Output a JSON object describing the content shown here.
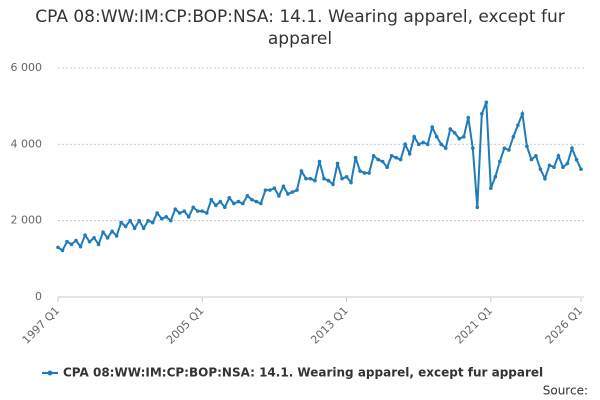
{
  "chart_data": {
    "type": "line",
    "title": "CPA 08:WW:IM:CP:BOP:NSA: 14.1. Wearing apparel, except fur apparel",
    "source": "Source:",
    "categories": [
      "1997 Q1",
      null,
      null,
      null,
      null,
      null,
      null,
      null,
      null,
      null,
      null,
      null,
      null,
      null,
      null,
      null,
      null,
      null,
      null,
      null,
      null,
      null,
      null,
      null,
      null,
      null,
      null,
      null,
      null,
      null,
      null,
      null,
      "2005 Q1",
      null,
      null,
      null,
      null,
      null,
      null,
      null,
      null,
      null,
      null,
      null,
      null,
      null,
      null,
      null,
      null,
      null,
      null,
      null,
      null,
      null,
      null,
      null,
      null,
      null,
      null,
      null,
      null,
      null,
      null,
      null,
      "2013 Q1",
      null,
      null,
      null,
      null,
      null,
      null,
      null,
      null,
      null,
      null,
      null,
      null,
      null,
      null,
      null,
      null,
      null,
      null,
      null,
      null,
      null,
      null,
      null,
      null,
      null,
      null,
      null,
      null,
      null,
      null,
      null,
      "2021 Q1",
      null,
      null,
      null,
      null,
      null,
      null,
      null,
      null,
      null,
      null,
      null,
      null,
      null,
      null,
      null,
      null,
      null,
      null,
      null,
      "2026 Q1"
    ],
    "series": [
      {
        "name": "CPA 08:WW:IM:CP:BOP:NSA: 14.1. Wearing apparel, except fur apparel",
        "color": "#1f7cb8",
        "values": [
          1300,
          1220,
          1450,
          1380,
          1480,
          1320,
          1620,
          1450,
          1550,
          1380,
          1700,
          1550,
          1720,
          1600,
          1950,
          1850,
          2000,
          1800,
          2000,
          1800,
          2000,
          1950,
          2200,
          2050,
          2100,
          2000,
          2300,
          2200,
          2250,
          2100,
          2350,
          2250,
          2250,
          2200,
          2550,
          2400,
          2500,
          2350,
          2600,
          2450,
          2500,
          2450,
          2650,
          2550,
          2500,
          2450,
          2800,
          2800,
          2850,
          2650,
          2900,
          2700,
          2750,
          2800,
          3300,
          3100,
          3100,
          3050,
          3550,
          3100,
          3050,
          2950,
          3500,
          3100,
          3150,
          3000,
          3650,
          3300,
          3250,
          3250,
          3700,
          3600,
          3550,
          3400,
          3700,
          3650,
          3600,
          4000,
          3750,
          4200,
          4000,
          4050,
          4000,
          4450,
          4200,
          4000,
          3900,
          4400,
          4300,
          4150,
          4200,
          4700,
          3900,
          2350,
          4800,
          5100,
          2850,
          3150,
          3550,
          3900,
          3850,
          4200,
          4500,
          4800,
          3950,
          3600,
          3700,
          3350,
          3100,
          3450,
          3400,
          3700,
          3400,
          3500,
          3900,
          3600,
          3350
        ]
      }
    ],
    "ylim": [
      0,
      6000
    ],
    "yticks": [
      0,
      {
        "value": 2000,
        "label": "2 000"
      },
      {
        "value": 4000,
        "label": "4 000"
      },
      {
        "value": 6000,
        "label": "6 000"
      }
    ],
    "grid": true
  }
}
